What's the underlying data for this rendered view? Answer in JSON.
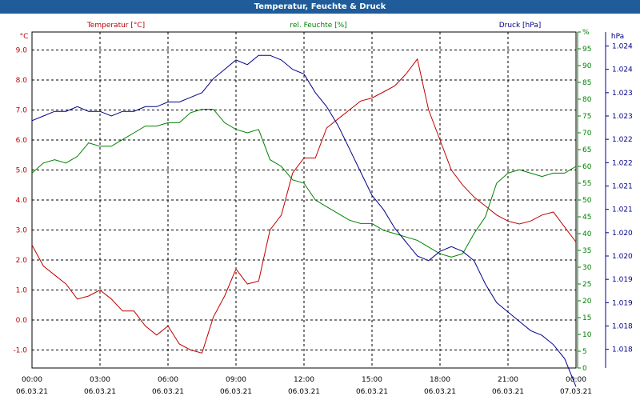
{
  "title": "Temperatur, Feuchte & Druck",
  "colors": {
    "temperature": "#c00000",
    "humidity": "#008000",
    "pressure": "#00008b",
    "title_bg": "#1f5c99"
  },
  "chart_data": {
    "type": "line",
    "title": "Temperatur, Feuchte & Druck",
    "x_tick_times": [
      "00:00",
      "03:00",
      "06:00",
      "09:00",
      "12:00",
      "15:00",
      "18:00",
      "21:00",
      "00:00"
    ],
    "x_tick_dates": [
      "06.03.21",
      "06.03.21",
      "06.03.21",
      "06.03.21",
      "06.03.21",
      "06.03.21",
      "06.03.21",
      "06.03.21",
      "07.03.21"
    ],
    "grid": true,
    "axes": {
      "left": {
        "label": "Temperatur [°C]",
        "unit": "°C",
        "range": [
          -1.6,
          9.6
        ],
        "ticks": [
          -1.0,
          0.0,
          1.0,
          2.0,
          3.0,
          4.0,
          5.0,
          6.0,
          7.0,
          8.0,
          9.0
        ],
        "tick_labels": [
          "-1.0",
          "0.0",
          "1.0",
          "2.0",
          "3.0",
          "4.0",
          "5.0",
          "6.0",
          "7.0",
          "8.0",
          "9.0"
        ]
      },
      "mid": {
        "label": "rel. Feuchte [%]",
        "unit": "%",
        "range": [
          0,
          100
        ],
        "ticks": [
          0,
          5,
          10,
          15,
          20,
          25,
          30,
          35,
          40,
          45,
          50,
          55,
          60,
          65,
          70,
          75,
          80,
          85,
          90,
          95,
          100
        ],
        "tick_labels": [
          "0",
          "5",
          "10",
          "15",
          "20",
          "25",
          "30",
          "35",
          "40",
          "45",
          "50",
          "55",
          "60",
          "65",
          "70",
          "75",
          "80",
          "85",
          "90",
          "95",
          "%"
        ]
      },
      "right": {
        "label": "Druck [hPa]",
        "unit": "hPa",
        "range": [
          1017.6,
          1024.8
        ],
        "ticks": [
          1018.0,
          1018.5,
          1019.0,
          1019.5,
          1020.0,
          1020.5,
          1021.0,
          1021.5,
          1022.0,
          1022.5,
          1023.0,
          1023.5,
          1024.0,
          1024.5
        ],
        "tick_labels": [
          "1.018",
          "1.018",
          "1.019",
          "1.019",
          "1.020",
          "1.020",
          "1.021",
          "1.021",
          "1.022",
          "1.022",
          "1.023",
          "1.023",
          "1.024",
          "1.024"
        ]
      }
    },
    "series": [
      {
        "name": "Temperatur [°C]",
        "axis": "left",
        "color": "#c00000",
        "x": [
          0,
          0.5,
          1,
          1.5,
          2,
          2.5,
          3,
          3.5,
          4,
          4.5,
          5,
          5.5,
          6,
          6.5,
          7,
          7.5,
          8,
          8.5,
          9,
          9.5,
          10,
          10.5,
          11,
          11.5,
          12,
          12.5,
          13,
          13.5,
          14,
          14.5,
          15,
          15.5,
          16,
          16.5,
          17,
          17.5,
          18,
          18.5,
          19,
          19.5,
          20,
          20.5,
          21,
          21.5,
          22,
          22.5,
          23,
          23.5,
          24
        ],
        "y": [
          2.5,
          1.8,
          1.5,
          1.2,
          0.7,
          0.8,
          1.0,
          0.7,
          0.3,
          0.3,
          -0.2,
          -0.5,
          -0.2,
          -0.8,
          -1.0,
          -1.1,
          0.1,
          0.8,
          1.7,
          1.2,
          1.3,
          3.0,
          3.5,
          4.9,
          5.4,
          5.4,
          6.4,
          6.7,
          7.0,
          7.3,
          7.4,
          7.6,
          7.8,
          8.2,
          8.7,
          7.0,
          6.0,
          5.0,
          4.5,
          4.1,
          3.8,
          3.5,
          3.3,
          3.2,
          3.3,
          3.5,
          3.6,
          3.1,
          2.6
        ]
      },
      {
        "name": "rel. Feuchte [%]",
        "axis": "mid",
        "color": "#008000",
        "x": [
          0,
          0.5,
          1,
          1.5,
          2,
          2.5,
          3,
          3.5,
          4,
          4.5,
          5,
          5.5,
          6,
          6.5,
          7,
          7.5,
          8,
          8.5,
          9,
          9.5,
          10,
          10.5,
          11,
          11.5,
          12,
          12.5,
          13,
          13.5,
          14,
          14.5,
          15,
          15.5,
          16,
          16.5,
          17,
          17.5,
          18,
          18.5,
          19,
          19.5,
          20,
          20.5,
          21,
          21.5,
          22,
          22.5,
          23,
          23.5,
          24
        ],
        "y": [
          58,
          61,
          62,
          61,
          63,
          67,
          66,
          66,
          68,
          70,
          72,
          72,
          73,
          73,
          76,
          77,
          77,
          73,
          71,
          70,
          71,
          62,
          60,
          56,
          55,
          50,
          48,
          46,
          44,
          43,
          43,
          41,
          40,
          39,
          38,
          36,
          34,
          33,
          34,
          40,
          45,
          55,
          58,
          59,
          58,
          57,
          58,
          58,
          60
        ]
      },
      {
        "name": "Druck [hPa]",
        "axis": "right",
        "color": "#00008b",
        "x": [
          0,
          0.5,
          1,
          1.5,
          2,
          2.5,
          3,
          3.5,
          4,
          4.5,
          5,
          5.5,
          6,
          6.5,
          7,
          7.5,
          8,
          8.5,
          9,
          9.5,
          10,
          10.5,
          11,
          11.5,
          12,
          12.5,
          13,
          13.5,
          14,
          14.5,
          15,
          15.5,
          16,
          16.5,
          17,
          17.5,
          18,
          18.5,
          19,
          19.5,
          20,
          20.5,
          21,
          21.5,
          22,
          22.5,
          23,
          23.5,
          24
        ],
        "y": [
          1022.9,
          1023.0,
          1023.1,
          1023.1,
          1023.2,
          1023.1,
          1023.1,
          1023.0,
          1023.1,
          1023.1,
          1023.2,
          1023.2,
          1023.3,
          1023.3,
          1023.4,
          1023.5,
          1023.8,
          1024.0,
          1024.2,
          1024.1,
          1024.3,
          1024.3,
          1024.2,
          1024.0,
          1023.9,
          1023.5,
          1023.2,
          1022.8,
          1022.3,
          1021.8,
          1021.3,
          1021.0,
          1020.6,
          1020.3,
          1020.0,
          1019.9,
          1020.1,
          1020.2,
          1020.1,
          1019.9,
          1019.4,
          1019.0,
          1018.8,
          1018.6,
          1018.4,
          1018.3,
          1018.1,
          1017.8,
          1017.2
        ]
      }
    ]
  }
}
